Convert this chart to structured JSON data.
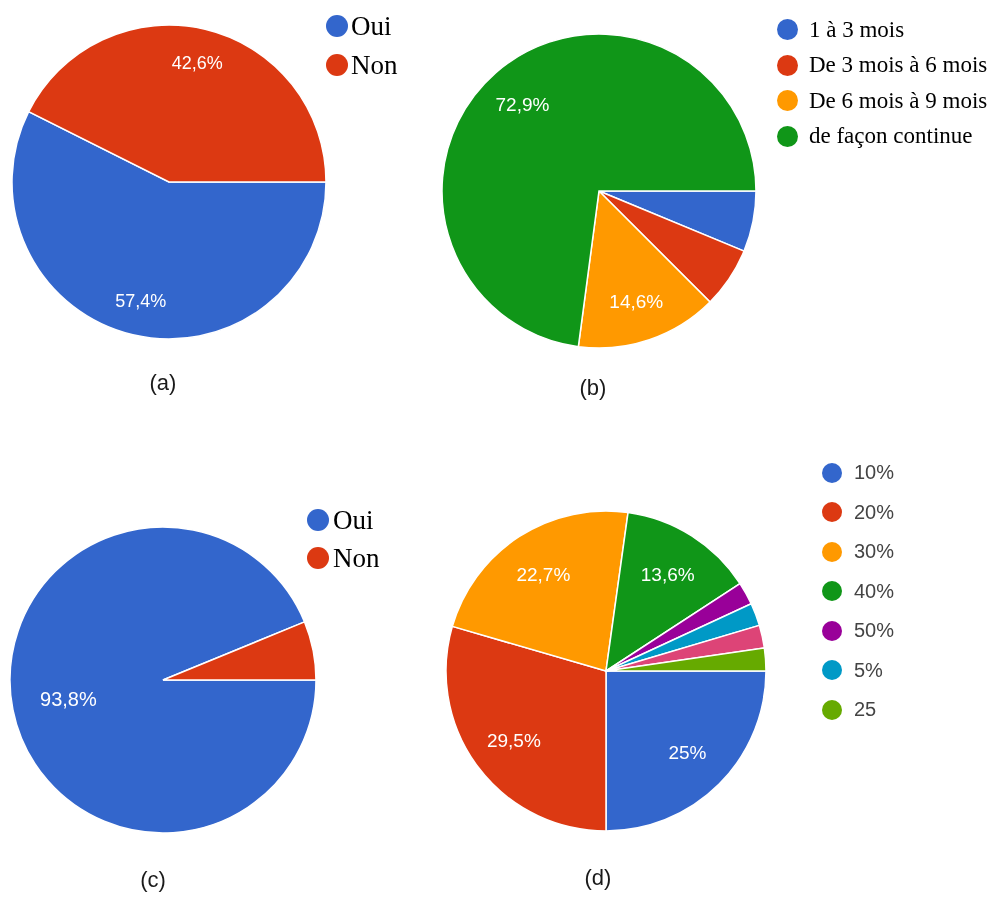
{
  "chart_data": [
    {
      "type": "pie",
      "title": "(a)",
      "categories": [
        "Oui",
        "Non"
      ],
      "values": [
        57.4,
        42.6
      ],
      "colors": [
        "#3366cc",
        "#dc3912"
      ],
      "value_labels": [
        "57,4%",
        "42,6%"
      ],
      "legend": "top right"
    },
    {
      "type": "pie",
      "title": "(b)",
      "categories": [
        "1 à 3 mois",
        "De 3 mois à 6 mois",
        "De 6 mois à 9 mois",
        "de façon continue"
      ],
      "values": [
        6.25,
        6.25,
        14.6,
        72.9
      ],
      "colors": [
        "#3366cc",
        "#dc3912",
        "#ff9900",
        "#109618"
      ],
      "value_labels": [
        null,
        null,
        "14,6%",
        "72,9%"
      ],
      "legend": "top right"
    },
    {
      "type": "pie",
      "title": "(c)",
      "categories": [
        "Oui",
        "Non"
      ],
      "values": [
        93.8,
        6.2
      ],
      "colors": [
        "#3366cc",
        "#dc3912"
      ],
      "value_labels": [
        "93,8%",
        null
      ],
      "legend": "top right"
    },
    {
      "type": "pie",
      "title": "(d)",
      "categories": [
        "10%",
        "20%",
        "30%",
        "40%",
        "50%",
        "5%",
        null,
        "25"
      ],
      "values": [
        25,
        29.5,
        22.7,
        13.6,
        2.3,
        2.3,
        2.3,
        2.3
      ],
      "colors": [
        "#3366cc",
        "#dc3912",
        "#ff9900",
        "#109618",
        "#990099",
        "#0099c6",
        "#dd4477",
        "#66aa00"
      ],
      "value_labels": [
        "25%",
        "29,5%",
        "22,7%",
        "13,6%",
        null,
        null,
        null,
        null
      ],
      "legend": "top right"
    }
  ]
}
